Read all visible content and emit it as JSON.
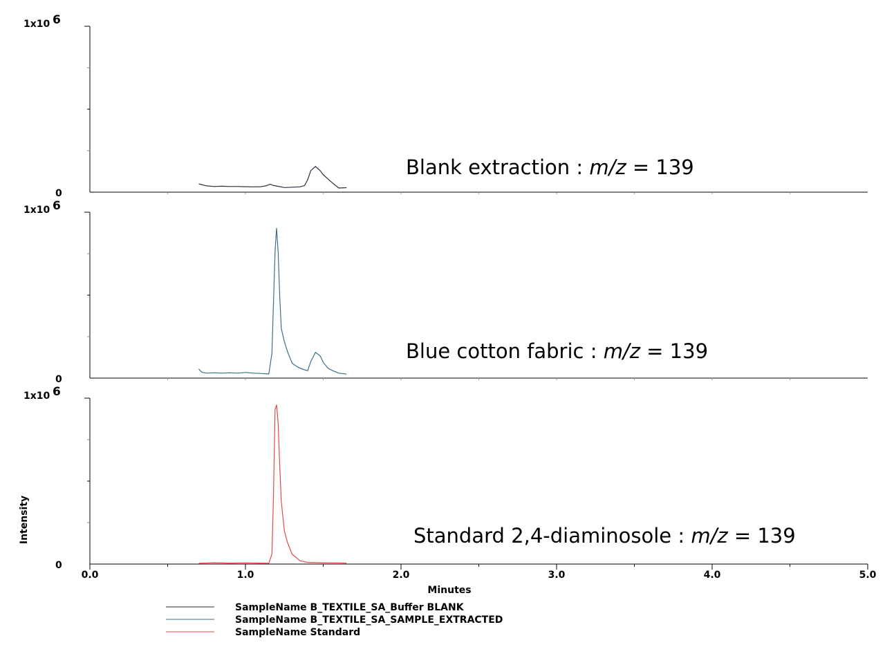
{
  "chart_data": {
    "type": "line",
    "xlabel": "Minutes",
    "ylabel": "Intensity",
    "xlim": [
      0,
      5
    ],
    "x_ticks": [
      "0.0",
      "1.0",
      "2.0",
      "3.0",
      "4.0",
      "5.0"
    ],
    "panels": [
      {
        "ylim": [
          0,
          1000000
        ],
        "y_top_label": "1x10",
        "y_top_exp": "6",
        "y_zero_label": "0",
        "annotation": {
          "pre": "Blank extraction : ",
          "italic": "m/z",
          "post": " = 139"
        },
        "series_index": 0
      },
      {
        "ylim": [
          0,
          1000000
        ],
        "y_top_label": "1x10",
        "y_top_exp": "6",
        "y_zero_label": "0",
        "annotation": {
          "pre": "Blue cotton fabric : ",
          "italic": "m/z",
          "post": " = 139"
        },
        "series_index": 1
      },
      {
        "ylim": [
          0,
          1000000
        ],
        "y_top_label": "1x10",
        "y_top_exp": "6",
        "y_zero_label": "0",
        "annotation": {
          "pre": "Standard 2,4-diaminosole : ",
          "italic": "m/z",
          "post": " = 139"
        },
        "series_index": 2
      }
    ],
    "series": [
      {
        "name": "SampleName B_TEXTILE_SA_Buffer BLANK",
        "color": "#2b2b3a",
        "x": [
          0.7,
          0.75,
          0.8,
          0.85,
          0.9,
          0.95,
          1.0,
          1.05,
          1.1,
          1.13,
          1.16,
          1.18,
          1.2,
          1.25,
          1.3,
          1.35,
          1.38,
          1.4,
          1.42,
          1.45,
          1.48,
          1.5,
          1.53,
          1.56,
          1.6,
          1.65
        ],
        "values": [
          50000,
          38000,
          34000,
          36000,
          34000,
          34000,
          33000,
          32000,
          33000,
          38000,
          48000,
          40000,
          37000,
          28000,
          30000,
          32000,
          40000,
          75000,
          130000,
          155000,
          130000,
          105000,
          80000,
          55000,
          25000,
          27000
        ]
      },
      {
        "name": "SampleName B_TEXTILE_SA_SAMPLE_EXTRACTED",
        "color": "#3a6f86",
        "x": [
          0.7,
          0.72,
          0.75,
          0.8,
          0.85,
          0.9,
          0.95,
          1.0,
          1.05,
          1.1,
          1.15,
          1.17,
          1.19,
          1.2,
          1.21,
          1.22,
          1.23,
          1.25,
          1.27,
          1.3,
          1.33,
          1.35,
          1.38,
          1.4,
          1.42,
          1.45,
          1.48,
          1.5,
          1.53,
          1.56,
          1.6,
          1.65
        ],
        "values": [
          55000,
          35000,
          30000,
          32000,
          30000,
          32000,
          30000,
          34000,
          30000,
          28000,
          25000,
          150000,
          760000,
          905000,
          760000,
          500000,
          300000,
          220000,
          160000,
          90000,
          70000,
          60000,
          50000,
          45000,
          100000,
          155000,
          135000,
          95000,
          60000,
          45000,
          30000,
          24000
        ]
      },
      {
        "name": "SampleName Standard",
        "color": "#e04a4a",
        "x": [
          0.7,
          0.8,
          0.9,
          1.0,
          1.1,
          1.15,
          1.17,
          1.18,
          1.19,
          1.2,
          1.21,
          1.22,
          1.23,
          1.25,
          1.27,
          1.3,
          1.35,
          1.4,
          1.5,
          1.6,
          1.65
        ],
        "values": [
          5000,
          8000,
          6000,
          7000,
          6000,
          5000,
          60000,
          400000,
          930000,
          960000,
          850000,
          600000,
          380000,
          200000,
          130000,
          60000,
          20000,
          10000,
          8000,
          7000,
          6000
        ]
      }
    ]
  }
}
